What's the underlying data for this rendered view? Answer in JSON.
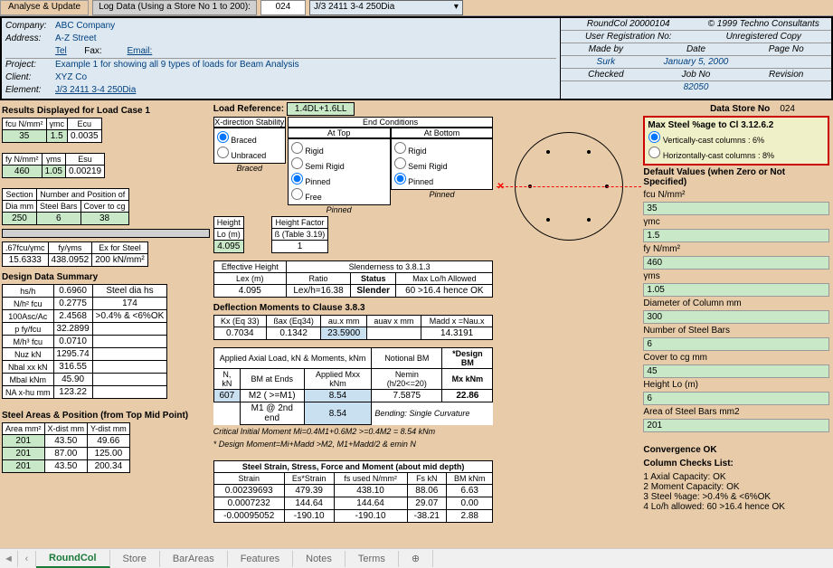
{
  "top": {
    "analyse": "Analyse & Update",
    "log": "Log Data (Using a Store No 1 to 200):",
    "store": "024",
    "dropdown": "J/3 2411 3-4 250Dia"
  },
  "hdr": {
    "company_l": "Company:",
    "company": "ABC Company",
    "address_l": "Address:",
    "address": "A-Z Street",
    "tel": "Tel",
    "fax": "Fax:",
    "email": "Email:",
    "project_l": "Project:",
    "project": "Example 1 for showing all 9 types of loads for Beam Analysis",
    "client_l": "Client:",
    "client": "XYZ Co",
    "element_l": "Element:",
    "element": "J/3 2411 3-4 250Dia",
    "r1a": "RoundCol 20000104",
    "r1b": "© 1999 Techno Consultants",
    "r2a": "User Registration No:",
    "r2b": "Unregistered Copy",
    "r3a": "Made by",
    "r3b": "Date",
    "r3c": "Page No",
    "r4a": "Surk",
    "r4b": "January 5, 2000",
    "r5a": "Checked",
    "r5b": "Job No",
    "r5c": "Revision",
    "r6b": "82050"
  },
  "load_ref_l": "Load Reference:",
  "load_ref": "1.4DL+1.6LL",
  "data_store_l": "Data Store No",
  "data_store": "024",
  "results_title": "Results Displayed for Load Case 1",
  "t1": {
    "h1": "fcu N/mm²",
    "h2": "γmc",
    "h3": "Ecu",
    "v1": "35",
    "v2": "1.5",
    "v3": "0.0035"
  },
  "t2": {
    "h1": "fy N/mm²",
    "h2": "γms",
    "h3": "Esu",
    "v1": "460",
    "v2": "1.05",
    "v3": "0.00219"
  },
  "t3": {
    "h1": "Section",
    "h2": "Number and Position of",
    "r2a": "Dia mm",
    "r2b": "Steel Bars",
    "r2c": "Cover to cg",
    "v1": "250",
    "v2": "6",
    "v3": "38"
  },
  "t4": {
    "h1": ".67fcu/γmc",
    "h2": "fy/γms",
    "h3": "Ex for Steel",
    "v1": "15.6333",
    "v2": "438.0952",
    "v3": "200 kN/mm²"
  },
  "dds_title": "Design Data Summary",
  "dds": [
    [
      "hs/h",
      "0.6960",
      "Steel dia hs"
    ],
    [
      "N/h² fcu",
      "0.2775",
      "174"
    ],
    [
      "100Asc/Ac",
      "2.4568",
      ">0.4% & <6%OK"
    ],
    [
      "p fy/fcu",
      "32.2899",
      ""
    ],
    [
      "M/h³ fcu",
      "0.0710",
      ""
    ],
    [
      "Nuz kN",
      "1295.74",
      ""
    ],
    [
      "Nbal xx kN",
      "316.55",
      ""
    ],
    [
      "Mbal kNm",
      "45.90",
      ""
    ],
    [
      "NA x-hu mm",
      "123.22",
      ""
    ]
  ],
  "xdir": {
    "title": "X-direction Stability",
    "opt1": "Braced",
    "opt2": "Unbraced",
    "note": "Braced"
  },
  "end": {
    "title": "End Conditions",
    "top": "At Top",
    "bot": "At Bottom",
    "o1": "Rigid",
    "o2": "Semi Rigid",
    "o3": "Pinned",
    "o4": "Free",
    "note": "Pinned"
  },
  "height": {
    "h1": "Height",
    "h2": "Lo (m)",
    "v": "4.095",
    "hf1": "Height Factor",
    "hf2": "ß (Table 3.19)",
    "hfv": "1"
  },
  "slender": {
    "title": "Slenderness to 3.8.1.3",
    "h1": "Effective Height",
    "h2": "Lex  (m)",
    "r": "Ratio",
    "s": "Status",
    "m": "Max Lo/h Allowed",
    "v1": "4.095",
    "v2": "Lex/h=16.38",
    "v3": "Slender",
    "v4": "60 >16.4 hence OK"
  },
  "defl": {
    "title": "Deflection Moments to Clause 3.8.3",
    "h": [
      "Kx (Eq 33)",
      "ßax (Eq34)",
      "au.x  mm",
      "auav x  mm",
      "Madd x =Nau.x"
    ],
    "v": [
      "0.7034",
      "0.1342",
      "23.5900",
      "",
      "14.3191"
    ]
  },
  "axial": {
    "title": "Applied Axial Load, kN  & Moments, kNm",
    "h": [
      "N, kN",
      "BM at Ends",
      "Applied Mxx kNm",
      "Notional BM",
      "*Design BM"
    ],
    "h2": "Nemin (h/20<=20)",
    "h3": "Mx kNm",
    "r1": [
      "607",
      "M2 ( >=M1)",
      "8.54",
      "7.5875",
      "22.86"
    ],
    "r2": [
      "",
      "M1 @ 2nd end",
      "8.54",
      "Bending: Single Curvature",
      ""
    ],
    "note1": "Critical Initial Moment Mi=0.4M1+0.6M2 >=0.4M2 = 8.54 kNm",
    "note2": "* Design Moment=Mi+Madd >M2, M1+Madd/2 & emin N"
  },
  "sap": {
    "title": "Steel Areas & Position (from Top Mid Point)",
    "h": [
      "Area mm²",
      "X-dist mm",
      "Y-dist mm"
    ],
    "rows": [
      [
        "201",
        "43.50",
        "49.66"
      ],
      [
        "201",
        "87.00",
        "125.00"
      ],
      [
        "201",
        "43.50",
        "200.34"
      ]
    ]
  },
  "strain": {
    "title": "Steel Strain, Stress, Force and Moment (about mid depth)",
    "h": [
      "Strain",
      "Es*Strain",
      "fs used N/mm²",
      "Fs kN",
      "BM kNm"
    ],
    "rows": [
      [
        "0.00239693",
        "479.39",
        "438.10",
        "88.06",
        "6.63"
      ],
      [
        "0.0007232",
        "144.64",
        "144.64",
        "29.07",
        "0.00"
      ],
      [
        "-0.00095052",
        "-190.10",
        "-190.10",
        "-38.21",
        "2.88"
      ]
    ]
  },
  "maxsteel": {
    "title": "Max Steel %age to Cl 3.12.6.2",
    "o1": "Vertically-cast columns : 6%",
    "o2": "Horizontally-cast columns : 8%"
  },
  "defaults": {
    "title": "Default Values (when Zero or Not Specified)",
    "rows": [
      [
        "fcu N/mm²",
        "35"
      ],
      [
        "γmc",
        "1.5"
      ],
      [
        "fy N/mm²",
        "460"
      ],
      [
        "γms",
        "1.05"
      ],
      [
        "Diameter of Column mm",
        "300"
      ],
      [
        "Number of Steel Bars",
        "6"
      ],
      [
        "Cover to cg mm",
        "45"
      ],
      [
        "Height Lo (m)",
        "6"
      ],
      [
        "Area of Steel Bars mm2",
        "201"
      ]
    ]
  },
  "conv": "Convergence OK",
  "checks_title": "Column Checks List:",
  "checks": [
    "1 Axial Capacity: OK",
    "2 Moment Capacity: OK",
    "3 Steel %age: >0.4% & <6%OK",
    "4 Lo/h allowed: 60 >16.4 hence OK"
  ],
  "tabs": [
    "RoundCol",
    "Store",
    "BarAreas",
    "Features",
    "Notes",
    "Terms"
  ]
}
